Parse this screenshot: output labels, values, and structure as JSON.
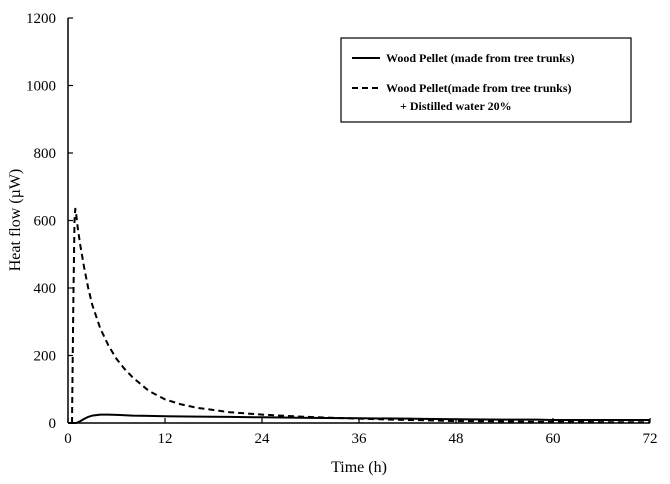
{
  "chart_data": {
    "type": "line",
    "xlabel": "Time (h)",
    "ylabel": "Heat flow (µW)",
    "xlim": [
      0,
      72
    ],
    "ylim": [
      0,
      1200
    ],
    "x_ticks": [
      0,
      12,
      24,
      36,
      48,
      60,
      72
    ],
    "y_ticks": [
      0,
      200,
      400,
      600,
      800,
      1000,
      1200
    ],
    "grid": false,
    "legend_position": "top-right",
    "series": [
      {
        "name": "Wood Pellet (made from tree trunks)",
        "style": "solid",
        "color": "#000000",
        "x": [
          0,
          1.0,
          1.5,
          2,
          2.5,
          3,
          4,
          5,
          6,
          8,
          10,
          12,
          16,
          20,
          24,
          30,
          36,
          42,
          44,
          48,
          54,
          58,
          60,
          66,
          72
        ],
        "y": [
          0,
          0,
          5,
          12,
          18,
          22,
          25,
          25,
          24,
          22,
          21,
          20,
          19,
          18,
          17,
          15,
          14,
          13,
          12,
          11,
          10,
          10,
          9,
          9,
          9
        ]
      },
      {
        "name": "Wood Pellet(made from tree trunks)",
        "name_line2": "+ Distilled water 20%",
        "style": "dashed",
        "color": "#000000",
        "x": [
          0.5,
          0.65,
          0.8,
          0.9,
          1.0,
          1.2,
          1.5,
          2,
          2.5,
          3,
          4,
          5,
          6,
          7,
          8,
          10,
          12,
          14,
          16,
          20,
          24,
          28,
          32,
          36,
          40,
          44,
          48,
          52,
          56,
          60,
          64,
          68,
          72
        ],
        "y": [
          0,
          350,
          600,
          635,
          620,
          580,
          530,
          460,
          400,
          350,
          280,
          230,
          190,
          160,
          135,
          95,
          70,
          55,
          45,
          32,
          25,
          20,
          16,
          13,
          10,
          8,
          6,
          5,
          4,
          3,
          3,
          2,
          2
        ]
      }
    ]
  }
}
